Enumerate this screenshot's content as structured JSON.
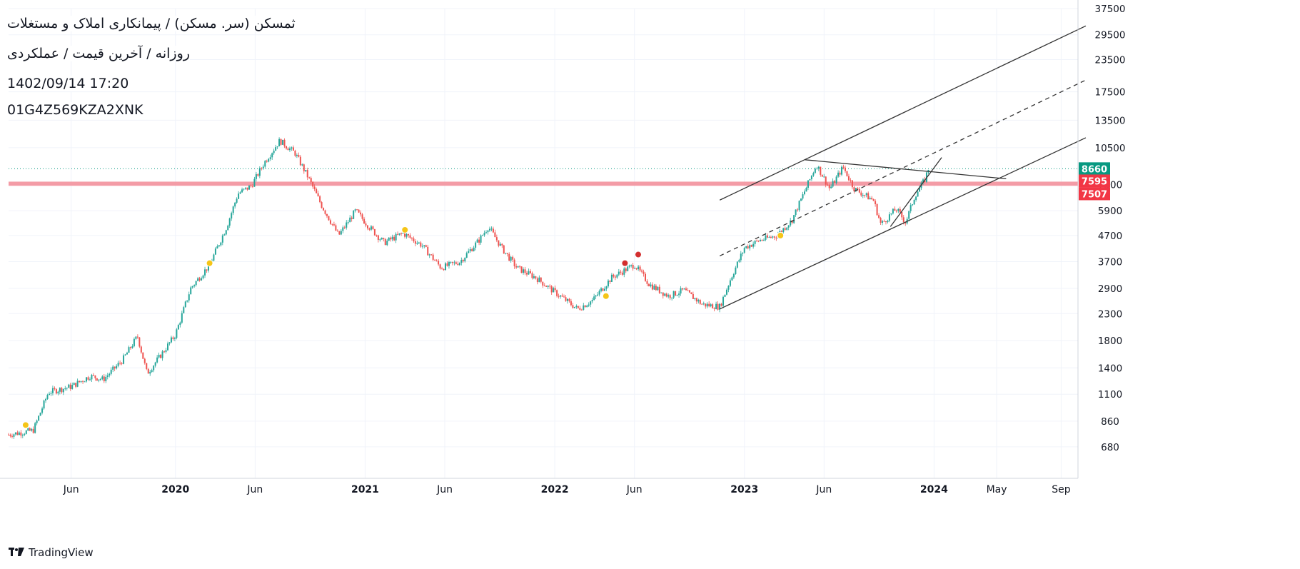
{
  "header": {
    "title": "ثمسکن (سر. مسکن) / پیمانکاری املاک و مستغلات",
    "subtitle": "روزانه / آخرین قیمت / عملکردی",
    "datetime": "1402/09/14 17:20",
    "id_code": "01G4Z569KZA2XNK"
  },
  "branding": {
    "label": "TradingView",
    "logo_icon": "tradingview-logo-icon"
  },
  "colors": {
    "up": "#26a69a",
    "down": "#ef5350",
    "support_band": "#f28b96",
    "last_price_badge": "#089981",
    "level_badge": "#f23645",
    "trend_line": "#333333",
    "grid": "#f0f3fa",
    "marker_yellow": "#f5c518",
    "marker_red": "#d32f2f"
  },
  "chart_data": {
    "type": "candlestick",
    "scale": "log",
    "ylim": [
      600,
      37500
    ],
    "xlim": [
      2019.12,
      2024.74
    ],
    "y_ticks": [
      680,
      860,
      1100,
      1400,
      1800,
      2300,
      2900,
      3700,
      4700,
      5900,
      7500,
      10500,
      13500,
      17500,
      23500,
      29500,
      37500
    ],
    "x_ticks": [
      {
        "label": "Jun",
        "t": 2019.45,
        "bold": false
      },
      {
        "label": "2020",
        "t": 2020.0,
        "bold": true
      },
      {
        "label": "Jun",
        "t": 2020.42,
        "bold": false
      },
      {
        "label": "2021",
        "t": 2021.0,
        "bold": true
      },
      {
        "label": "Jun",
        "t": 2021.42,
        "bold": false
      },
      {
        "label": "2022",
        "t": 2022.0,
        "bold": true
      },
      {
        "label": "Jun",
        "t": 2022.42,
        "bold": false
      },
      {
        "label": "2023",
        "t": 2023.0,
        "bold": true
      },
      {
        "label": "Jun",
        "t": 2023.42,
        "bold": false
      },
      {
        "label": "2024",
        "t": 2024.0,
        "bold": true
      },
      {
        "label": "May",
        "t": 2024.33,
        "bold": false
      },
      {
        "label": "Sep",
        "t": 2024.67,
        "bold": false
      }
    ],
    "price_path": [
      [
        2019.12,
        760
      ],
      [
        2019.25,
        790
      ],
      [
        2019.33,
        1120
      ],
      [
        2019.45,
        1180
      ],
      [
        2019.55,
        1300
      ],
      [
        2019.62,
        1260
      ],
      [
        2019.72,
        1500
      ],
      [
        2019.8,
        1870
      ],
      [
        2019.85,
        1330
      ],
      [
        2019.93,
        1600
      ],
      [
        2020.0,
        1900
      ],
      [
        2020.08,
        2900
      ],
      [
        2020.18,
        3600
      ],
      [
        2020.27,
        5100
      ],
      [
        2020.33,
        6900
      ],
      [
        2020.4,
        7400
      ],
      [
        2020.47,
        9200
      ],
      [
        2020.55,
        11200
      ],
      [
        2020.63,
        10000
      ],
      [
        2020.7,
        8000
      ],
      [
        2020.77,
        6200
      ],
      [
        2020.86,
        4700
      ],
      [
        2020.95,
        5900
      ],
      [
        2021.02,
        5100
      ],
      [
        2021.1,
        4400
      ],
      [
        2021.2,
        4800
      ],
      [
        2021.3,
        4300
      ],
      [
        2021.4,
        3500
      ],
      [
        2021.5,
        3700
      ],
      [
        2021.6,
        4500
      ],
      [
        2021.65,
        5100
      ],
      [
        2021.72,
        4200
      ],
      [
        2021.8,
        3500
      ],
      [
        2021.9,
        3200
      ],
      [
        2022.0,
        2800
      ],
      [
        2022.12,
        2400
      ],
      [
        2022.2,
        2600
      ],
      [
        2022.3,
        3200
      ],
      [
        2022.42,
        3600
      ],
      [
        2022.5,
        3000
      ],
      [
        2022.6,
        2700
      ],
      [
        2022.68,
        2850
      ],
      [
        2022.78,
        2500
      ],
      [
        2022.87,
        2450
      ],
      [
        2022.93,
        3200
      ],
      [
        2023.0,
        4200
      ],
      [
        2023.08,
        4500
      ],
      [
        2023.17,
        4700
      ],
      [
        2023.25,
        5400
      ],
      [
        2023.33,
        7400
      ],
      [
        2023.38,
        9000
      ],
      [
        2023.45,
        7200
      ],
      [
        2023.52,
        8800
      ],
      [
        2023.58,
        7200
      ],
      [
        2023.68,
        6500
      ],
      [
        2023.72,
        5200
      ],
      [
        2023.8,
        6000
      ],
      [
        2023.85,
        5300
      ],
      [
        2023.9,
        6800
      ],
      [
        2023.95,
        7800
      ],
      [
        2023.97,
        8660
      ]
    ],
    "last_price": 8660,
    "levels": [
      {
        "value": 7595,
        "label": "7595"
      },
      {
        "value": 7507,
        "label": "7507"
      }
    ],
    "last_price_label": "8660",
    "trendlines": [
      {
        "name": "channel-upper-line",
        "from": [
          2022.87,
          6500
        ],
        "to": [
          2024.8,
          32000
        ],
        "style": "solid"
      },
      {
        "name": "channel-mid-line",
        "from": [
          2022.87,
          3900
        ],
        "to": [
          2024.8,
          19500
        ],
        "style": "dashed"
      },
      {
        "name": "channel-lower-line",
        "from": [
          2022.87,
          2400
        ],
        "to": [
          2024.8,
          11500
        ],
        "style": "solid"
      },
      {
        "name": "resistance-line",
        "from": [
          2023.32,
          9400
        ],
        "to": [
          2024.38,
          7900
        ],
        "style": "solid"
      },
      {
        "name": "steep-support-line",
        "from": [
          2023.77,
          5100
        ],
        "to": [
          2024.04,
          9600
        ],
        "style": "solid"
      }
    ],
    "markers": [
      {
        "t": 2019.21,
        "price": 830,
        "color": "yellow"
      },
      {
        "t": 2020.18,
        "price": 3650,
        "color": "yellow"
      },
      {
        "t": 2021.21,
        "price": 4950,
        "color": "yellow"
      },
      {
        "t": 2022.27,
        "price": 2700,
        "color": "yellow"
      },
      {
        "t": 2022.37,
        "price": 3650,
        "color": "red"
      },
      {
        "t": 2022.44,
        "price": 3950,
        "color": "red"
      },
      {
        "t": 2023.19,
        "price": 4700,
        "color": "yellow"
      }
    ]
  }
}
